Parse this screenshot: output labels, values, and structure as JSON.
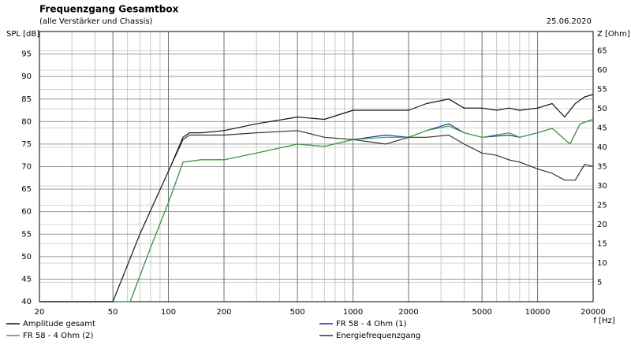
{
  "chart_data": {
    "type": "line",
    "title": "Frequenzgang Gesamtbox",
    "subtitle": "(alle Verstärker und Chassis)",
    "date": "25.06.2020",
    "y_label": "SPL [dB]",
    "y2_label": "Z [Ohm]",
    "x_label": "f [Hz]",
    "x_scale": "log",
    "xlim": [
      20,
      20000
    ],
    "xticks": [
      20,
      50,
      100,
      200,
      500,
      1000,
      2000,
      5000,
      10000,
      20000
    ],
    "minor_xticks": [
      30,
      40,
      60,
      70,
      80,
      90,
      300,
      400,
      600,
      700,
      800,
      900,
      3000,
      4000,
      6000,
      7000,
      8000,
      9000
    ],
    "ylim": [
      40,
      100
    ],
    "yticks": [
      40,
      45,
      50,
      55,
      60,
      65,
      70,
      75,
      80,
      85,
      90,
      95
    ],
    "y2lim": [
      0,
      70
    ],
    "y2ticks": [
      5,
      10,
      15,
      20,
      25,
      30,
      35,
      40,
      45,
      50,
      55,
      60,
      65
    ],
    "grid": true,
    "series": [
      {
        "name": "Amplitude gesamt",
        "color": "#111111",
        "x": [
          20,
          50,
          70,
          100,
          120,
          130,
          150,
          200,
          300,
          500,
          700,
          1000,
          1500,
          2000,
          2500,
          3300,
          4000,
          5000,
          6000,
          7000,
          8000,
          10000,
          12000,
          14000,
          16000,
          18000,
          20000
        ],
        "values": [
          40,
          40,
          55,
          69,
          76.5,
          77.5,
          77.5,
          78,
          79.5,
          81,
          80.5,
          82.5,
          82.5,
          82.5,
          84,
          85,
          83,
          83,
          82.5,
          83,
          82.5,
          83,
          84,
          81,
          84,
          85.5,
          86
        ]
      },
      {
        "name": "FR 58 - 4 Ohm (1)",
        "color": "#2a2aa8",
        "x": [
          20,
          62,
          80,
          100,
          120,
          150,
          200,
          300,
          500,
          700,
          1000,
          1500,
          2000,
          2500,
          3300,
          4000,
          5000,
          7000,
          8000,
          10000,
          12000,
          15000,
          17000,
          20000
        ],
        "values": [
          40,
          40,
          52,
          62,
          71,
          71.5,
          71.5,
          73,
          75,
          74.5,
          76,
          77,
          76.5,
          78,
          79.5,
          77.5,
          76.5,
          77,
          76.5,
          77.5,
          78.5,
          75,
          79.5,
          80.5
        ]
      },
      {
        "name": "FR 58 - 4 Ohm (2)",
        "color": "#3fa33f",
        "x": [
          20,
          62,
          80,
          100,
          120,
          150,
          200,
          300,
          500,
          700,
          1000,
          1500,
          2000,
          2500,
          3300,
          4000,
          5000,
          7000,
          8000,
          10000,
          12000,
          15000,
          17000,
          20000
        ],
        "values": [
          40,
          40,
          52,
          62,
          71,
          71.5,
          71.5,
          73,
          75,
          74.5,
          76,
          76.5,
          76.5,
          78,
          79,
          77.5,
          76.5,
          77.5,
          76.5,
          77.5,
          78.5,
          75,
          79.5,
          80.5
        ]
      },
      {
        "name": "Energiefrequenzgang",
        "color": "#333333",
        "x": [
          20,
          50,
          70,
          100,
          120,
          130,
          150,
          200,
          300,
          500,
          700,
          1000,
          1500,
          2000,
          2500,
          3300,
          4000,
          5000,
          6000,
          7000,
          8000,
          10000,
          12000,
          14000,
          16000,
          18000,
          20000
        ],
        "values": [
          40,
          40,
          55,
          69,
          76,
          77,
          77,
          77,
          77.5,
          78,
          76.5,
          76,
          75,
          76.5,
          76.5,
          77,
          75,
          73,
          72.5,
          71.5,
          71,
          69.5,
          68.5,
          67,
          67,
          70.5,
          70
        ]
      }
    ]
  }
}
